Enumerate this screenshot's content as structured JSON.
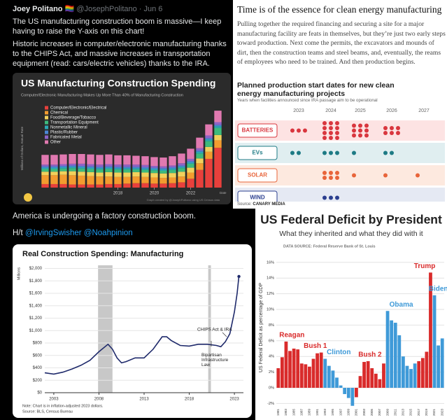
{
  "tweet_1": {
    "author": "Joey Politano 🏳️‍🌈",
    "handle": "@JosephPolitano · Jun 6",
    "paragraphs": [
      "The US manufacturing construction boom is massive—I keep having to raise the Y-axis on this chart!",
      "Historic increases in computer/electronic manufacturing thanks to the CHIPS Act, and massive increases in transportation equipment (read: cars/electric vehicles) thanks to the IRA."
    ]
  },
  "chart_1": {
    "type": "stacked-bar",
    "title": "US Manufacturing Construction Spending",
    "subtitle": "Computer/Electronic Manufacturing Makes Up More Than 40% of Manufacturing Construction",
    "y_label": "Millions of Dollars, Annual Rate",
    "x_label": "Date",
    "credit": "Graph created by @JosephPolitano using US Census data",
    "x": [
      2014,
      2014.5,
      2015,
      2015.5,
      2016,
      2016.5,
      2017,
      2017.5,
      2018,
      2018.5,
      2019,
      2019.5,
      2020,
      2020.5,
      2021,
      2021.5,
      2022,
      2022.5,
      2023,
      2023.5
    ],
    "xlim": [
      2013.75,
      2023.75
    ],
    "xticks": [
      2018,
      2020,
      2022
    ],
    "ylim": [
      0,
      190
    ],
    "series": [
      {
        "name": "Computer/Electronic/Electrical",
        "color": "#e8403c",
        "values": [
          8,
          8,
          8,
          7,
          7,
          7,
          7,
          8,
          8,
          9,
          10,
          10,
          9,
          9,
          10,
          12,
          20,
          40,
          65,
          90
        ]
      },
      {
        "name": "Chemical",
        "color": "#f39c2f",
        "values": [
          20,
          20,
          21,
          21,
          20,
          19,
          18,
          17,
          16,
          15,
          15,
          14,
          14,
          13,
          13,
          13,
          14,
          15,
          16,
          17
        ]
      },
      {
        "name": "Food/Beverage/Tobacco",
        "color": "#f2d15c",
        "values": [
          8,
          8,
          8,
          9,
          9,
          9,
          9,
          10,
          10,
          10,
          10,
          10,
          10,
          10,
          10,
          11,
          11,
          11,
          11,
          12
        ]
      },
      {
        "name": "Transportation Equipment",
        "color": "#3dba7c",
        "values": [
          6,
          6,
          6,
          7,
          7,
          7,
          7,
          7,
          7,
          7,
          6,
          6,
          6,
          6,
          7,
          8,
          9,
          11,
          13,
          16
        ]
      },
      {
        "name": "Nonmetallic Mineral",
        "color": "#2ba8b5",
        "values": [
          3,
          3,
          3,
          3,
          3,
          3,
          3,
          3,
          3,
          3,
          3,
          3,
          3,
          3,
          3,
          3,
          3,
          4,
          4,
          4
        ]
      },
      {
        "name": "Plastic/Rubber",
        "color": "#4a86d4",
        "values": [
          3,
          3,
          3,
          3,
          3,
          3,
          3,
          3,
          3,
          3,
          3,
          3,
          3,
          3,
          3,
          3,
          3,
          3,
          3,
          3
        ]
      },
      {
        "name": "Fabricated Metal",
        "color": "#8e63c7",
        "values": [
          4,
          4,
          4,
          4,
          5,
          5,
          5,
          5,
          5,
          5,
          5,
          5,
          4,
          4,
          4,
          5,
          5,
          5,
          6,
          6
        ]
      },
      {
        "name": "Other",
        "color": "#e079b0",
        "values": [
          22,
          22,
          22,
          22,
          22,
          22,
          22,
          22,
          21,
          21,
          20,
          20,
          20,
          20,
          21,
          22,
          23,
          24,
          25,
          26
        ]
      }
    ]
  },
  "article": {
    "title": "Time is of the essence for clean energy manufacturing",
    "body": "Pulling together the required financing and securing a site for a major manufacturing facility are feats in themselves, but they’re just two early steps toward production. Next come the permits, the excavators and mounds of dirt, then the construction teams and steel beams, and, eventually, the reams of employees who need to be trained. And then production begins."
  },
  "chart_2": {
    "type": "dot-grid",
    "title": "Planned production start dates for new clean energy manufacturing projects",
    "subtitle": "Years when facilities announced since IRA passage aim to be operational",
    "source": "Source:",
    "source_name": "CANARY MEDIA",
    "categories": [
      "2023",
      "2024",
      "2025",
      "2026",
      "2027"
    ],
    "rows": [
      {
        "name": "BATTERIES",
        "color": "#d9363e",
        "background": "#fde3e3",
        "values": [
          3,
          12,
          9,
          6,
          0
        ]
      },
      {
        "name": "EVs",
        "color": "#1e7b85",
        "background": "#e0eef0",
        "values": [
          2,
          3,
          1,
          2,
          0
        ]
      },
      {
        "name": "SOLAR",
        "color": "#e8643a",
        "background": "#fde9df",
        "values": [
          0,
          6,
          1,
          1,
          1
        ]
      },
      {
        "name": "WIND",
        "color": "#2b3f8f",
        "background": "#e5e9f3",
        "values": [
          0,
          3,
          0,
          0,
          0
        ]
      }
    ]
  },
  "tweet_2": {
    "text": "America is undergoing a factory construction boom.",
    "prefix": "H/t",
    "mentions": [
      "@IrvingSwisher",
      "@Noahpinion"
    ]
  },
  "chart_3": {
    "type": "line",
    "title": "Real Construction Spending: Manufacturing",
    "y_label": "Millions",
    "note": "Note: Chart is in inflation-adjusted 2023 dollars.",
    "source": "Source: BLS, Census Bureau",
    "annotations": [
      "CHIPS Act & IRA",
      "Bipartisan Infrastructure Law"
    ],
    "color": "#1f2a6b",
    "x": [
      2002,
      2003,
      2004,
      2005,
      2006,
      2007,
      2008,
      2009,
      2009.5,
      2010,
      2010.5,
      2011,
      2012,
      2013,
      2014,
      2015,
      2015.5,
      2016,
      2017,
      2018,
      2019,
      2020,
      2021,
      2021.5,
      2022,
      2022.5,
      2023,
      2023.3,
      2023.5
    ],
    "values": [
      320,
      300,
      330,
      380,
      440,
      520,
      660,
      780,
      700,
      560,
      480,
      500,
      560,
      560,
      700,
      900,
      900,
      840,
      760,
      750,
      780,
      780,
      760,
      740,
      820,
      950,
      1300,
      1600,
      1870
    ],
    "recessions": [
      [
        2007.9,
        2009.5
      ],
      [
        2020.1,
        2020.4
      ]
    ],
    "xlim": [
      2002,
      2024
    ],
    "xticks": [
      2003,
      2008,
      2013,
      2018,
      2023
    ],
    "ylim": [
      0,
      2050
    ],
    "yticks": [
      {
        "value": 0,
        "label": "$0"
      },
      {
        "value": 200,
        "label": "$200"
      },
      {
        "value": 400,
        "label": "$400"
      },
      {
        "value": 600,
        "label": "$600"
      },
      {
        "value": 800,
        "label": "$800"
      },
      {
        "value": 1000,
        "label": "$1,000"
      },
      {
        "value": 1200,
        "label": "$1,200"
      },
      {
        "value": 1400,
        "label": "$1,400"
      },
      {
        "value": 1600,
        "label": "$1,600"
      },
      {
        "value": 1800,
        "label": "$1,800"
      },
      {
        "value": 2000,
        "label": "$2,000"
      }
    ]
  },
  "chart_4": {
    "type": "bar",
    "title": "US Federal Deficit by President",
    "subtitle": "What they inherited and what they did with it",
    "source": "DATA SOURCE: Federal Reserve Bank of St. Louis",
    "y_label": "US Federal Deficit as percentage of GDP",
    "categories": [
      "1981",
      "1982",
      "1983",
      "1984",
      "1985",
      "1986",
      "1987",
      "1988",
      "1989",
      "1990",
      "1991",
      "1992",
      "1993",
      "1994",
      "1995",
      "1996",
      "1997",
      "1998",
      "1999",
      "2000",
      "2001",
      "2002",
      "2003",
      "2004",
      "2005",
      "2006",
      "2007",
      "2008",
      "2009",
      "2010",
      "2011",
      "2012",
      "2013",
      "2014",
      "2015",
      "2016",
      "2017",
      "2018",
      "2019",
      "2020",
      "2021",
      "2022",
      "2023"
    ],
    "values": [
      2.5,
      3.9,
      5.9,
      4.7,
      5.0,
      4.9,
      3.1,
      3.0,
      2.7,
      3.7,
      4.4,
      4.5,
      3.7,
      2.8,
      2.2,
      1.3,
      0.3,
      -0.8,
      -1.3,
      -2.3,
      -1.2,
      1.5,
      3.3,
      3.4,
      2.5,
      1.8,
      1.1,
      3.1,
      9.8,
      8.6,
      8.3,
      6.7,
      4.0,
      2.8,
      2.4,
      3.1,
      3.4,
      3.8,
      4.6,
      14.7,
      11.8,
      5.4,
      6.3
    ],
    "presidents": [
      {
        "name": "Reagan",
        "color": "#d92b2b",
        "first": 0,
        "last": 7
      },
      {
        "name": "Bush 1",
        "color": "#d92b2b",
        "first": 8,
        "last": 11
      },
      {
        "name": "Clinton",
        "color": "#3f9ad8",
        "first": 12,
        "last": 19
      },
      {
        "name": "Bush 2",
        "color": "#d92b2b",
        "first": 20,
        "last": 27
      },
      {
        "name": "Obama",
        "color": "#3f9ad8",
        "first": 28,
        "last": 35
      },
      {
        "name": "Trump",
        "color": "#d92b2b",
        "first": 36,
        "last": 39
      },
      {
        "name": "Biden",
        "color": "#3f9ad8",
        "first": 40,
        "last": 42
      }
    ],
    "ylim": [
      -2.5,
      17.5
    ],
    "yticks": [
      {
        "value": -2,
        "label": "-2%"
      },
      {
        "value": 0,
        "label": "0%"
      },
      {
        "value": 2,
        "label": "2%"
      },
      {
        "value": 4,
        "label": "4%"
      },
      {
        "value": 6,
        "label": "6%"
      },
      {
        "value": 8,
        "label": "8%"
      },
      {
        "value": 10,
        "label": "10%"
      },
      {
        "value": 12,
        "label": "12%"
      },
      {
        "value": 14,
        "label": "14%"
      },
      {
        "value": 16,
        "label": "16%"
      }
    ]
  }
}
